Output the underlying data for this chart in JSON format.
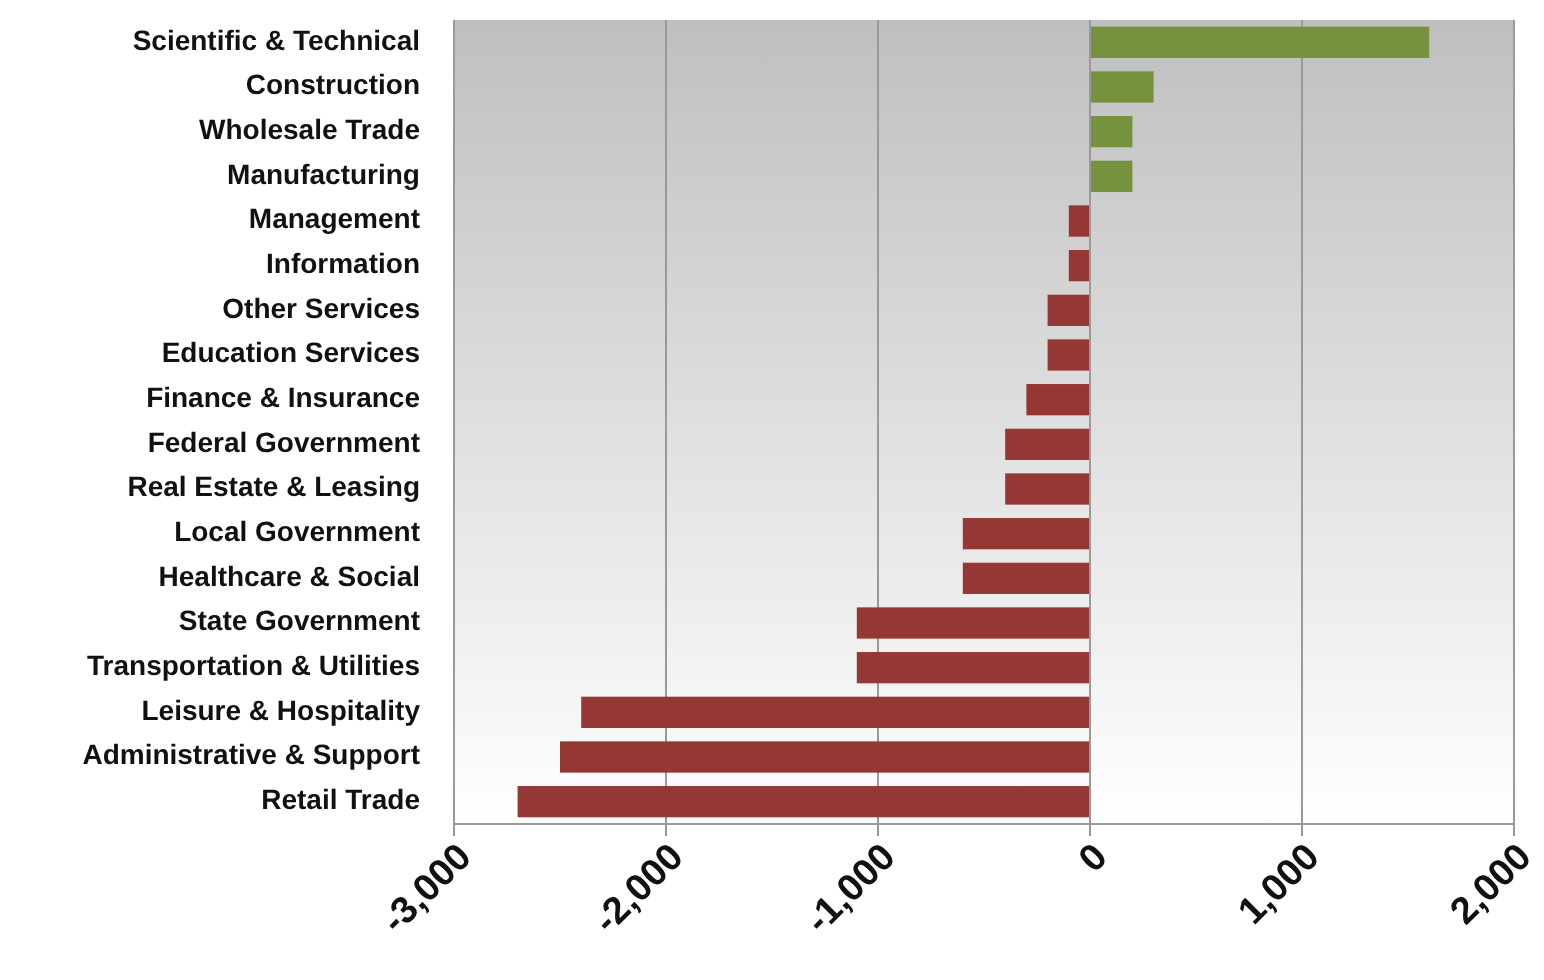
{
  "chart_data": {
    "type": "bar",
    "orientation": "horizontal",
    "categories": [
      "Scientific & Technical",
      "Construction",
      "Wholesale Trade",
      "Manufacturing",
      "Management",
      "Information",
      "Other Services",
      "Education Services",
      "Finance & Insurance",
      "Federal Government",
      "Real Estate & Leasing",
      "Local Government",
      "Healthcare & Social",
      "State Government",
      "Transportation & Utilities",
      "Leisure & Hospitality",
      "Administrative & Support",
      "Retail Trade"
    ],
    "values": [
      1600,
      300,
      200,
      200,
      -100,
      -100,
      -200,
      -200,
      -300,
      -400,
      -400,
      -600,
      -600,
      -1100,
      -1100,
      -2400,
      -2500,
      -2700
    ],
    "colors": [
      "#76923c",
      "#76923c",
      "#76923c",
      "#76923c",
      "#953735",
      "#953735",
      "#953735",
      "#953735",
      "#953735",
      "#953735",
      "#953735",
      "#953735",
      "#953735",
      "#953735",
      "#953735",
      "#953735",
      "#953735",
      "#953735"
    ],
    "xlim": [
      -3000,
      2000
    ],
    "xticks": [
      {
        "value": -3000,
        "label": "-3,000"
      },
      {
        "value": -2000,
        "label": "-2,000"
      },
      {
        "value": -1000,
        "label": "-1,000"
      },
      0,
      {
        "value": 1000,
        "label": "1,000"
      },
      {
        "value": 2000,
        "label": "2,000"
      }
    ],
    "grid": "x"
  }
}
